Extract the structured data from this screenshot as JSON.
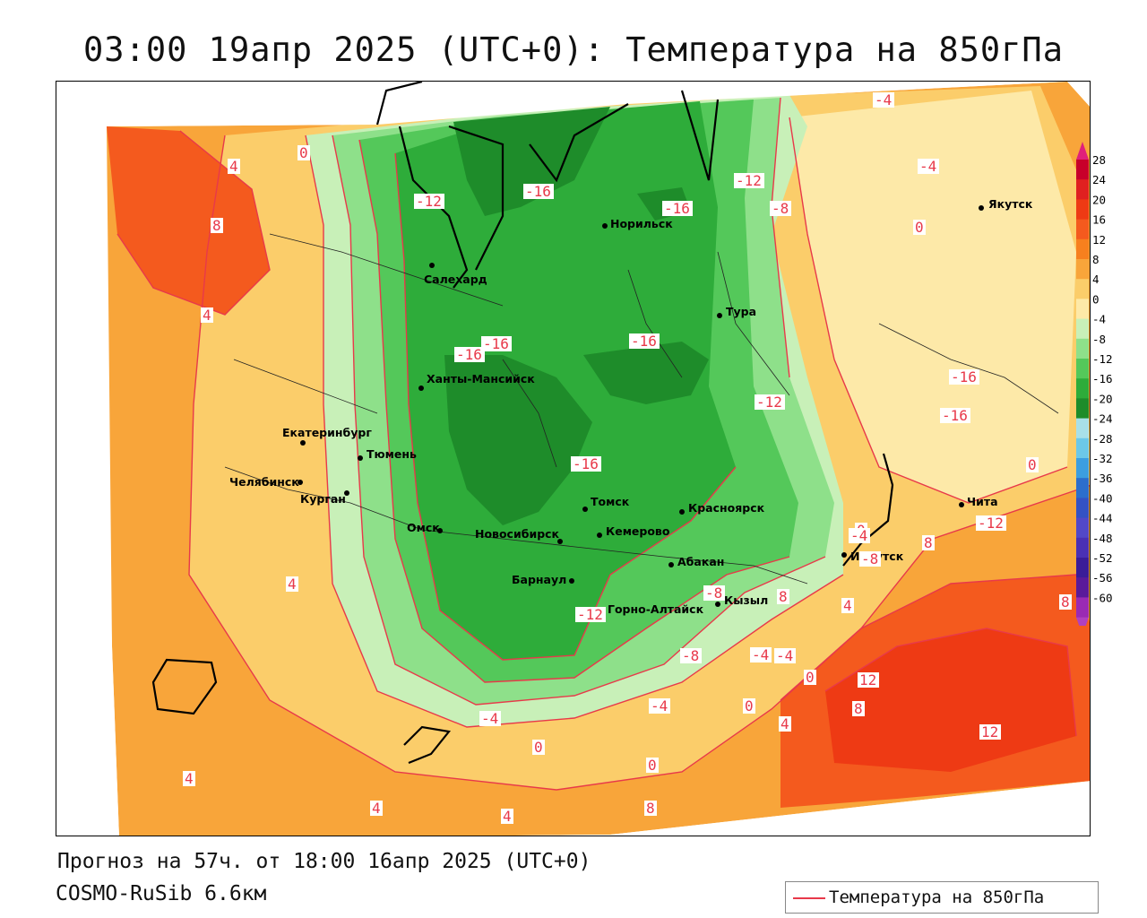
{
  "title": "03:00 19апр 2025 (UTC+0): Температура на 850гПа",
  "forecast_line": "Прогноз на 57ч. от 18:00 16апр 2025 (UTC+0)",
  "model_line": "COSMO-RuSib 6.6км",
  "legend": {
    "label": "Температура на 850гПа",
    "line_color": "#e8394a"
  },
  "colorbar": {
    "ticks": [
      "28",
      "24",
      "20",
      "16",
      "12",
      "8",
      "4",
      "0",
      "-4",
      "-8",
      "-12",
      "-16",
      "-20",
      "-24",
      "-28",
      "-32",
      "-36",
      "-40",
      "-44",
      "-48",
      "-52",
      "-56",
      "-60"
    ],
    "colors": [
      "#c8002a",
      "#e02020",
      "#ee3a14",
      "#f45a1e",
      "#f7801e",
      "#f8a53a",
      "#fbcd6a",
      "#fde9a8",
      "#c8f0b8",
      "#8ee08a",
      "#54c85a",
      "#2eac3a",
      "#1e8c2a",
      "#a8e0e8",
      "#6cc8e8",
      "#3c9ee0",
      "#2c6ecc",
      "#3452c4",
      "#5248c8",
      "#4a30b4",
      "#3a1c98",
      "#5a1a9a",
      "#9a2ab4"
    ]
  },
  "cities": [
    {
      "name": "Якутск"
    },
    {
      "name": "Норильск"
    },
    {
      "name": "Салехард"
    },
    {
      "name": "Тура"
    },
    {
      "name": "Ханты-Мансийск"
    },
    {
      "name": "Екатеринбург"
    },
    {
      "name": "Тюмень"
    },
    {
      "name": "Челябинск"
    },
    {
      "name": "Курган"
    },
    {
      "name": "Омск"
    },
    {
      "name": "Томск"
    },
    {
      "name": "Красноярск"
    },
    {
      "name": "Новосибирск"
    },
    {
      "name": "Кемерово"
    },
    {
      "name": "Абакан"
    },
    {
      "name": "Барнаул"
    },
    {
      "name": "Иркутск"
    },
    {
      "name": "Чита"
    },
    {
      "name": "Кызыл"
    },
    {
      "name": "Горно-Алтайск"
    }
  ],
  "isotherm_labels": [
    "-4",
    "-4",
    "0",
    "0",
    "8",
    "4",
    "4",
    "-12",
    "-16",
    "-16",
    "-16",
    "-16",
    "-16",
    "-16",
    "-16",
    "-16",
    "-12",
    "-8",
    "-12",
    "-12",
    "-8",
    "-8",
    "-4",
    "-4",
    "-4",
    "-4",
    "0",
    "0",
    "0",
    "0",
    "0",
    "0",
    "4",
    "4",
    "4",
    "4",
    "4",
    "8",
    "8",
    "8",
    "8",
    "8",
    "12",
    "12",
    "-4",
    "-8",
    "4",
    "-12"
  ]
}
